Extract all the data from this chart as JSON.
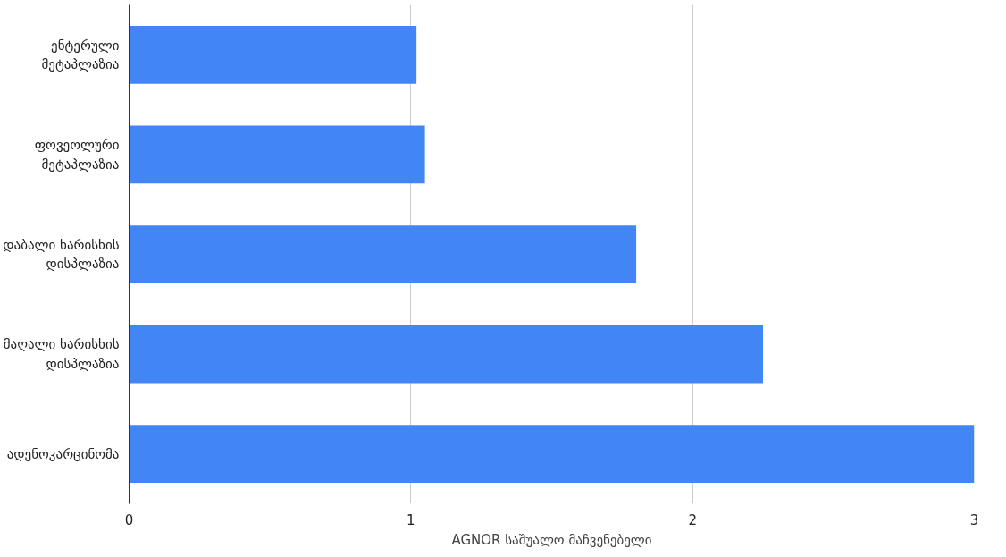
{
  "chart_data": {
    "type": "bar",
    "orientation": "horizontal",
    "categories": [
      "ენტერული\nმეტაპლაზია",
      "ფოვეოლური\nმეტაპლაზია",
      "დაბალი ხარისხის\nდისპლაზია",
      "მაღალი ხარისხის\nდისპლაზია",
      "ადენოკარცინომა"
    ],
    "values": [
      1.02,
      1.05,
      1.8,
      2.25,
      3.0
    ],
    "color": "#4285f4",
    "xlim": [
      0,
      3
    ],
    "xticks": [
      0,
      1,
      2,
      3
    ],
    "xlabel": "AGNOR საშუალო მაჩვენებელი",
    "grid": "x"
  }
}
